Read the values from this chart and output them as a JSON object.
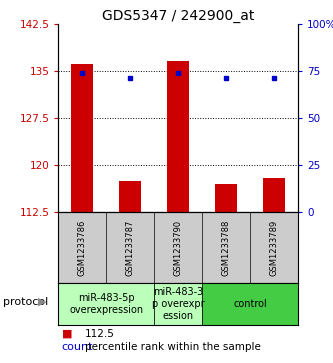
{
  "title": "GDS5347 / 242900_at",
  "samples": [
    "GSM1233786",
    "GSM1233787",
    "GSM1233790",
    "GSM1233788",
    "GSM1233789"
  ],
  "count_values": [
    136.0,
    117.5,
    136.5,
    117.0,
    118.0
  ],
  "percentile_values": [
    74,
    71,
    74,
    71,
    71
  ],
  "ylim_left": [
    112.5,
    142.5
  ],
  "ylim_right": [
    0,
    100
  ],
  "yticks_left": [
    112.5,
    120,
    127.5,
    135,
    142.5
  ],
  "yticks_right": [
    0,
    25,
    50,
    75,
    100
  ],
  "ytick_labels_left": [
    "112.5",
    "120",
    "127.5",
    "135",
    "142.5"
  ],
  "ytick_labels_right": [
    "0",
    "25",
    "50",
    "75",
    "100%"
  ],
  "bar_color": "#cc0000",
  "dot_color": "#0000cc",
  "hline_values": [
    120,
    127.5,
    135
  ],
  "groups": [
    {
      "label": "miR-483-5p\noverexpression",
      "start": 0,
      "end": 1,
      "color": "#bbffbb"
    },
    {
      "label": "miR-483-3\np overexpr\nession",
      "start": 2,
      "end": 2,
      "color": "#bbffbb"
    },
    {
      "label": "control",
      "start": 3,
      "end": 4,
      "color": "#44cc44"
    }
  ],
  "bar_bottom": 112.5,
  "title_fontsize": 10,
  "tick_fontsize": 7.5,
  "sample_fontsize": 6,
  "protocol_fontsize": 7,
  "legend_fontsize": 7.5
}
